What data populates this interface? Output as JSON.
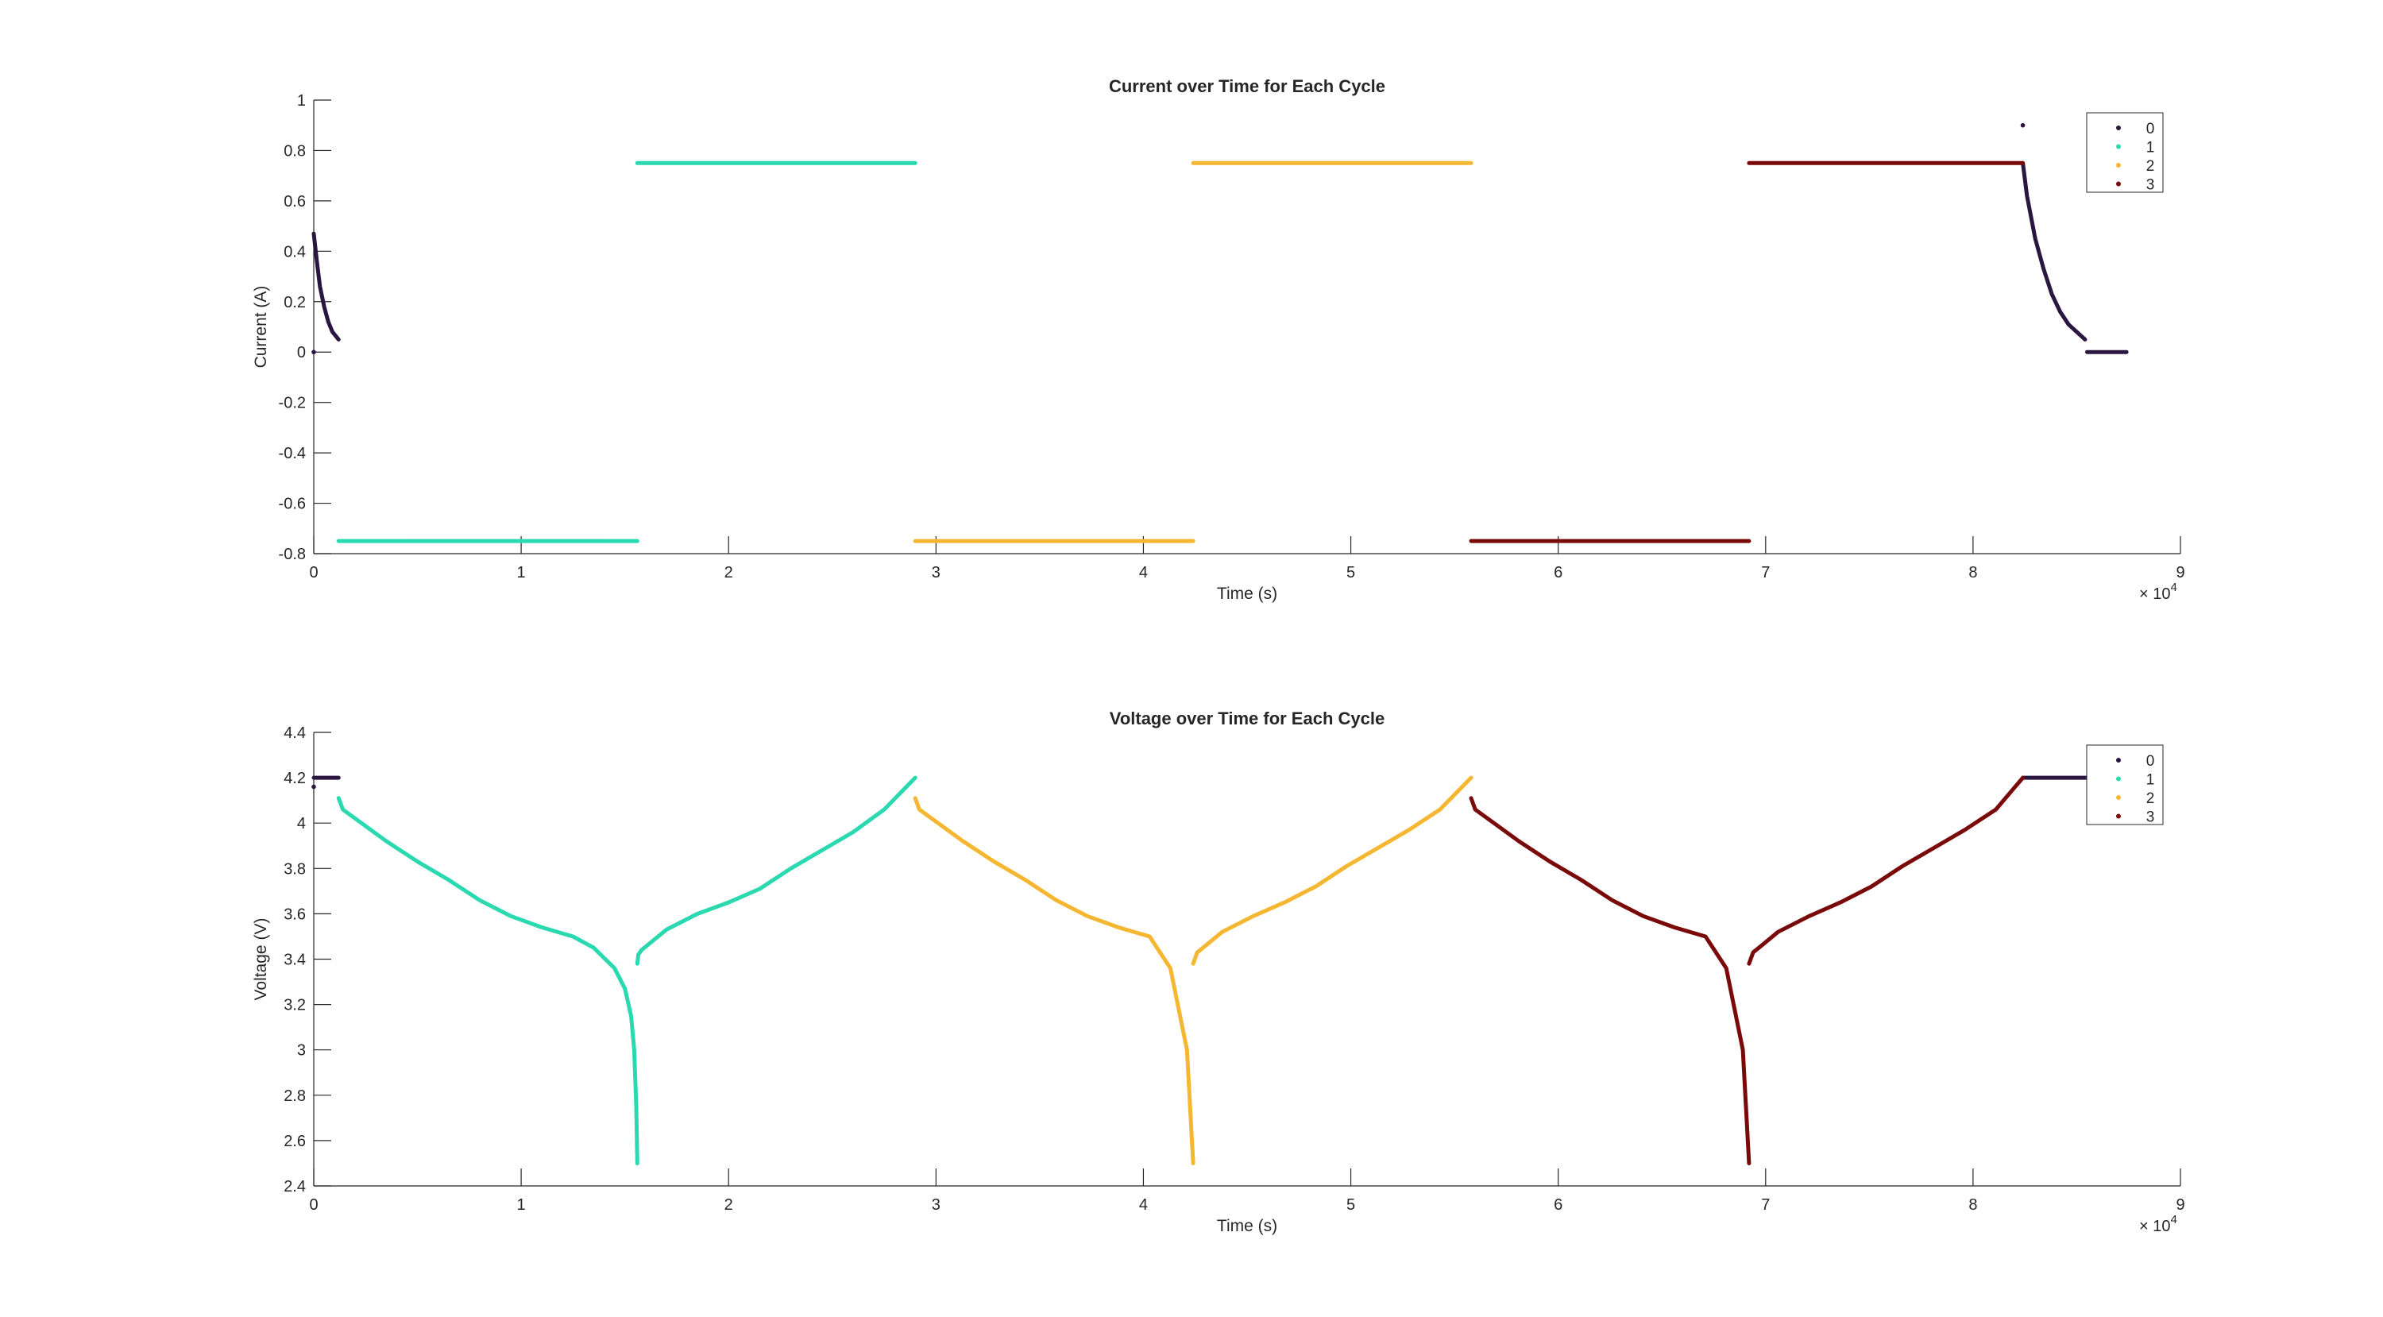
{
  "chart_data": [
    {
      "type": "scatter",
      "title": "Current over Time for Each Cycle",
      "xlabel": "Time (s)",
      "ylabel": "Current (A)",
      "xlim": [
        0,
        90000
      ],
      "ylim": [
        -0.8,
        1
      ],
      "x_ticks": [
        "0",
        "1",
        "2",
        "3",
        "4",
        "5",
        "6",
        "7",
        "8",
        "9"
      ],
      "y_ticks": [
        "-0.8",
        "-0.6",
        "-0.4",
        "-0.2",
        "0",
        "0.2",
        "0.4",
        "0.6",
        "0.8",
        "1"
      ],
      "x_exponent": {
        "base": "× 10",
        "power": "4"
      },
      "grid": false,
      "legend": {
        "position": "top-right",
        "entries": [
          "0",
          "1",
          "2",
          "3"
        ]
      },
      "series": [
        {
          "name": "0",
          "color": "#2a1640",
          "segments": [
            {
              "x": [
                0,
                150,
                300,
                500,
                700,
                900,
                1200
              ],
              "y": [
                0.47,
                0.36,
                0.26,
                0.18,
                0.12,
                0.08,
                0.05
              ]
            },
            {
              "x": [
                82400,
                82600,
                83000,
                83400,
                83800,
                84200,
                84600,
                85000,
                85400
              ],
              "y": [
                0.75,
                0.62,
                0.45,
                0.33,
                0.23,
                0.16,
                0.11,
                0.08,
                0.05
              ]
            },
            {
              "x": [
                85500,
                86500,
                87400
              ],
              "y": [
                0,
                0,
                0
              ]
            }
          ],
          "points": [
            {
              "x": 0,
              "y": 0
            },
            {
              "x": 82400,
              "y": 0.9
            }
          ]
        },
        {
          "name": "1",
          "color": "#2ad9b0",
          "segments": [
            {
              "x": [
                1200,
                15600
              ],
              "y": [
                -0.75,
                -0.75
              ]
            },
            {
              "x": [
                15600,
                29000
              ],
              "y": [
                0.75,
                0.75
              ]
            }
          ]
        },
        {
          "name": "2",
          "color": "#f5b731",
          "segments": [
            {
              "x": [
                29000,
                42400
              ],
              "y": [
                -0.75,
                -0.75
              ]
            },
            {
              "x": [
                42400,
                55800
              ],
              "y": [
                0.75,
                0.75
              ]
            }
          ]
        },
        {
          "name": "3",
          "color": "#7a0a0a",
          "segments": [
            {
              "x": [
                55800,
                69200
              ],
              "y": [
                -0.75,
                -0.75
              ]
            },
            {
              "x": [
                69200,
                82400
              ],
              "y": [
                0.75,
                0.75
              ]
            }
          ]
        }
      ]
    },
    {
      "type": "scatter",
      "title": "Voltage over Time for Each Cycle",
      "xlabel": "Time (s)",
      "ylabel": "Voltage (V)",
      "xlim": [
        0,
        90000
      ],
      "ylim": [
        2.4,
        4.4
      ],
      "x_ticks": [
        "0",
        "1",
        "2",
        "3",
        "4",
        "5",
        "6",
        "7",
        "8",
        "9"
      ],
      "y_ticks": [
        "2.4",
        "2.6",
        "2.8",
        "3",
        "3.2",
        "3.4",
        "3.6",
        "3.8",
        "4",
        "4.2",
        "4.4"
      ],
      "x_exponent": {
        "base": "× 10",
        "power": "4"
      },
      "grid": false,
      "legend": {
        "position": "top-right",
        "entries": [
          "0",
          "1",
          "2",
          "3"
        ]
      },
      "series": [
        {
          "name": "0",
          "color": "#2a1640",
          "segments": [
            {
              "x": [
                0,
                1200
              ],
              "y": [
                4.2,
                4.2
              ]
            },
            {
              "x": [
                82400,
                85500
              ],
              "y": [
                4.2,
                4.2
              ]
            }
          ],
          "points": [
            {
              "x": 0,
              "y": 4.16
            },
            {
              "x": 85500,
              "y": 4.2
            }
          ]
        },
        {
          "name": "1",
          "color": "#2ad9b0",
          "segments": [
            {
              "x": [
                1200,
                1400,
                2000,
                3500,
                5000,
                6500,
                8000,
                9500,
                11000,
                12500,
                13500,
                14500,
                15000,
                15300,
                15450,
                15550,
                15600
              ],
              "y": [
                4.11,
                4.06,
                4.02,
                3.92,
                3.83,
                3.75,
                3.66,
                3.59,
                3.54,
                3.5,
                3.45,
                3.36,
                3.27,
                3.15,
                3.0,
                2.75,
                2.5
              ]
            },
            {
              "x": [
                15600,
                15650,
                15800,
                16200,
                17000,
                18500,
                20000,
                21500,
                23000,
                24500,
                26000,
                27500,
                29000
              ],
              "y": [
                3.38,
                3.42,
                3.44,
                3.47,
                3.53,
                3.6,
                3.65,
                3.71,
                3.8,
                3.88,
                3.96,
                4.06,
                4.2
              ]
            }
          ]
        },
        {
          "name": "2",
          "color": "#f5b731",
          "segments": [
            {
              "x": [
                29000,
                29200,
                29800,
                31300,
                32800,
                34300,
                35800,
                37300,
                38800,
                40300,
                41300,
                42100,
                42400
              ],
              "y": [
                4.11,
                4.06,
                4.02,
                3.92,
                3.83,
                3.75,
                3.66,
                3.59,
                3.54,
                3.5,
                3.36,
                3.0,
                2.5
              ]
            },
            {
              "x": [
                42400,
                42600,
                43000,
                43800,
                45300,
                46800,
                48300,
                49800,
                51300,
                52800,
                54300,
                55800
              ],
              "y": [
                3.38,
                3.43,
                3.46,
                3.52,
                3.59,
                3.65,
                3.72,
                3.81,
                3.89,
                3.97,
                4.06,
                4.2
              ]
            }
          ]
        },
        {
          "name": "3",
          "color": "#7a0a0a",
          "segments": [
            {
              "x": [
                55800,
                56000,
                56600,
                58100,
                59600,
                61100,
                62600,
                64100,
                65600,
                67100,
                68100,
                68900,
                69200
              ],
              "y": [
                4.11,
                4.06,
                4.02,
                3.92,
                3.83,
                3.75,
                3.66,
                3.59,
                3.54,
                3.5,
                3.36,
                3.0,
                2.5
              ]
            },
            {
              "x": [
                69200,
                69400,
                69800,
                70600,
                72100,
                73600,
                75100,
                76600,
                78100,
                79600,
                81100,
                82400
              ],
              "y": [
                3.38,
                3.43,
                3.46,
                3.52,
                3.59,
                3.65,
                3.72,
                3.81,
                3.89,
                3.97,
                4.06,
                4.2
              ]
            }
          ]
        }
      ]
    }
  ]
}
